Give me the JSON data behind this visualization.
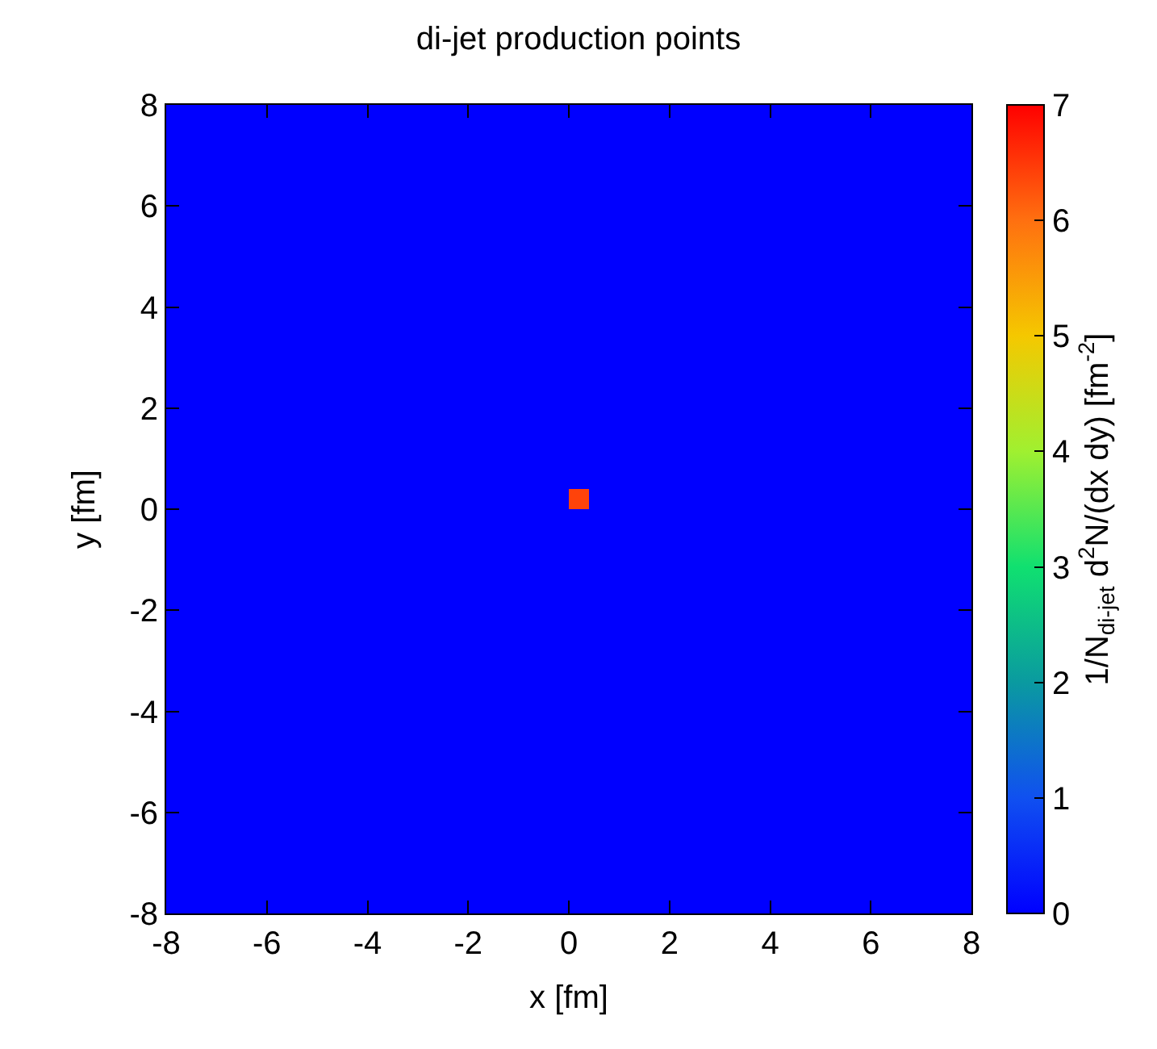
{
  "chart_data": {
    "type": "heatmap",
    "title": "di-jet production points",
    "xlabel": "x [fm]",
    "ylabel": "y [fm]",
    "clabel": "1/N$_{di-jet}$ d$^{2}$N/(dx dy) [fm$^{-2}$]",
    "x": [
      -7.8,
      -7.4,
      -7.0,
      -6.6,
      -6.2,
      -5.8,
      -5.4,
      -5.0,
      -4.6,
      -4.2,
      -3.8,
      -3.4,
      -3.0,
      -2.6,
      -2.2,
      -1.8,
      -1.4,
      -1.0,
      -0.6,
      -0.2,
      0.2,
      0.6,
      1.0,
      1.4,
      1.8,
      2.2,
      2.6,
      3.0,
      3.4,
      3.8,
      4.2,
      4.6,
      5.0,
      5.4,
      5.8,
      6.2,
      6.6,
      7.0,
      7.4,
      7.8
    ],
    "y": [
      7.8,
      7.4,
      7.0,
      6.6,
      6.2,
      5.8,
      5.4,
      5.0,
      4.6,
      4.2,
      3.8,
      3.4,
      3.0,
      2.6,
      2.2,
      1.8,
      1.4,
      1.0,
      0.6,
      0.2,
      -0.2,
      -0.6,
      -1.0,
      -1.4,
      -1.8,
      -2.2,
      -2.6,
      -3.0,
      -3.4,
      -3.8,
      -4.2,
      -4.6,
      -5.0,
      -5.4,
      -5.8,
      -6.2,
      -6.6,
      -7.0,
      -7.4,
      -7.8
    ],
    "cells": [
      [
        0,
        0,
        0,
        0,
        0,
        0,
        0,
        0,
        0,
        0,
        0,
        0,
        0,
        0,
        0,
        0,
        0,
        0,
        0,
        0,
        0,
        0,
        0,
        0,
        0,
        0,
        0,
        0,
        0,
        0,
        0,
        0,
        0,
        0,
        0,
        0,
        0,
        0,
        0,
        0
      ],
      [
        0,
        0,
        0,
        0,
        0,
        0,
        0,
        0,
        0,
        0,
        0,
        0,
        0,
        0,
        0,
        0,
        0,
        0,
        0,
        0,
        0,
        0,
        0,
        0,
        0,
        0,
        0,
        0,
        0,
        0,
        0,
        0,
        0,
        0,
        0,
        0,
        0,
        0,
        0,
        0
      ],
      [
        0,
        0,
        0,
        0,
        0,
        0,
        0,
        0,
        0,
        0,
        0,
        0,
        0,
        0,
        0,
        0,
        0,
        0,
        0,
        0,
        0,
        0,
        0,
        0,
        0,
        0,
        0,
        0,
        0,
        0,
        0,
        0,
        0,
        0,
        0,
        0,
        0,
        0,
        0,
        0
      ],
      [
        0,
        0,
        0,
        0,
        0,
        0,
        0,
        0,
        0,
        0,
        0,
        0,
        0,
        0,
        0,
        0,
        0,
        0,
        0,
        0,
        0,
        0,
        0,
        0,
        0,
        0,
        0,
        0,
        0,
        0,
        0,
        0,
        0,
        0,
        0,
        0,
        0,
        0,
        0,
        0
      ],
      [
        0,
        0,
        0,
        0,
        0,
        0,
        0,
        0,
        0,
        0,
        0,
        0,
        0,
        0,
        0,
        0,
        0,
        0,
        0,
        0,
        0,
        0,
        0,
        0,
        0,
        0,
        0,
        0,
        0,
        0,
        0,
        0,
        0,
        0,
        0,
        0,
        0,
        0,
        0,
        0
      ],
      [
        0,
        0,
        0,
        0,
        0,
        0,
        0,
        0,
        0,
        0,
        0,
        0,
        0,
        0,
        0,
        0,
        0,
        0,
        0,
        0,
        0,
        0,
        0,
        0,
        0,
        0,
        0,
        0,
        0,
        0,
        0,
        0,
        0,
        0,
        0,
        0,
        0,
        0,
        0,
        0
      ],
      [
        0,
        0,
        0,
        0,
        0,
        0,
        0,
        0,
        0,
        0,
        0,
        0,
        0,
        0,
        0,
        0,
        0,
        0,
        0,
        0,
        0,
        0,
        0,
        0,
        0,
        0,
        0,
        0,
        0,
        0,
        0,
        0,
        0,
        0,
        0,
        0,
        0,
        0,
        0,
        0
      ],
      [
        0,
        0,
        0,
        0,
        0,
        0,
        0,
        0,
        0,
        0,
        0,
        0,
        0,
        0,
        0,
        0,
        0,
        0,
        0,
        0,
        0,
        0,
        0,
        0,
        0,
        0,
        0,
        0,
        0,
        0,
        0,
        0,
        0,
        0,
        0,
        0,
        0,
        0,
        0,
        0
      ],
      [
        0,
        0,
        0,
        0,
        0,
        0,
        0,
        0,
        0,
        0,
        0,
        0,
        0,
        0,
        0,
        0,
        0,
        0,
        0,
        0,
        0,
        0,
        0,
        0,
        0,
        0,
        0,
        0,
        0,
        0,
        0,
        0,
        0,
        0,
        0,
        0,
        0,
        0,
        0,
        0
      ],
      [
        0,
        0,
        0,
        0,
        0,
        0,
        0,
        0,
        0,
        0,
        0,
        0,
        0,
        0,
        0,
        0,
        0,
        0,
        0,
        0,
        0,
        0,
        0,
        0,
        0,
        0,
        0,
        0,
        0,
        0,
        0,
        0,
        0,
        0,
        0,
        0,
        0,
        0,
        0,
        0
      ],
      [
        0,
        0,
        0,
        0,
        0,
        0,
        0,
        0,
        0,
        0,
        0,
        0,
        0,
        0,
        0,
        0,
        0,
        0,
        0,
        0,
        0,
        0,
        0,
        0,
        0,
        0,
        0,
        0,
        0,
        0,
        0,
        0,
        0,
        0,
        0,
        0,
        0,
        0,
        0,
        0
      ],
      [
        0,
        0,
        0,
        0,
        0,
        0,
        0,
        0,
        0,
        0,
        0,
        0,
        0,
        0,
        0,
        0,
        0,
        0,
        0,
        0,
        0,
        0,
        0,
        0,
        0,
        0,
        0,
        0,
        0,
        0,
        0,
        0,
        0,
        0,
        0,
        0,
        0,
        0,
        0,
        0
      ],
      [
        0,
        0,
        0,
        0,
        0,
        0,
        0,
        0,
        0,
        0,
        0,
        0,
        0,
        0,
        0,
        0,
        0,
        0,
        0,
        0,
        0,
        0,
        0,
        0,
        0,
        0,
        0,
        0,
        0,
        0,
        0,
        0,
        0,
        0,
        0,
        0,
        0,
        0,
        0,
        0
      ],
      [
        0,
        0,
        0,
        0,
        0,
        0,
        0,
        0,
        0,
        0,
        0,
        0,
        0,
        0,
        0,
        0,
        0,
        0,
        0,
        0,
        0,
        0,
        0,
        0,
        0,
        0,
        0,
        0,
        0,
        0,
        0,
        0,
        0,
        0,
        0,
        0,
        0,
        0,
        0,
        0
      ],
      [
        0,
        0,
        0,
        0,
        0,
        0,
        0,
        0,
        0,
        0,
        0,
        0,
        0,
        0,
        0,
        0,
        0,
        0,
        0,
        0,
        0,
        0,
        0,
        0,
        0,
        0,
        0,
        0,
        0,
        0,
        0,
        0,
        0,
        0,
        0,
        0,
        0,
        0,
        0,
        0
      ],
      [
        0,
        0,
        0,
        0,
        0,
        0,
        0,
        0,
        0,
        0,
        0,
        0,
        0,
        0,
        0,
        0,
        0,
        0,
        0,
        0,
        0,
        0,
        0,
        0,
        0,
        0,
        0,
        0,
        0,
        0,
        0,
        0,
        0,
        0,
        0,
        0,
        0,
        0,
        0,
        0
      ],
      [
        0,
        0,
        0,
        0,
        0,
        0,
        0,
        0,
        0,
        0,
        0,
        0,
        0,
        0,
        0,
        0,
        0,
        0,
        0,
        0,
        0,
        0,
        0,
        0,
        0,
        0,
        0,
        0,
        0,
        0,
        0,
        0,
        0,
        0,
        0,
        0,
        0,
        0,
        0,
        0
      ],
      [
        0,
        0,
        0,
        0,
        0,
        0,
        0,
        0,
        0,
        0,
        0,
        0,
        0,
        0,
        0,
        0,
        0,
        0,
        0,
        0,
        0,
        0,
        0,
        0,
        0,
        0,
        0,
        0,
        0,
        0,
        0,
        0,
        0,
        0,
        0,
        0,
        0,
        0,
        0,
        0
      ],
      [
        0,
        0,
        0,
        0,
        0,
        0,
        0,
        0,
        0,
        0,
        0,
        0,
        0,
        0,
        0,
        0,
        0,
        0,
        0,
        0,
        0,
        0,
        0,
        0,
        0,
        0,
        0,
        0,
        0,
        0,
        0,
        0,
        0,
        0,
        0,
        0,
        0,
        0,
        0,
        0
      ],
      [
        0,
        0,
        0,
        0,
        0,
        0,
        0,
        0,
        0,
        0,
        0,
        0,
        0,
        0,
        0,
        0,
        0,
        0,
        0,
        0,
        6.4,
        0,
        0,
        0,
        0,
        0,
        0,
        0,
        0,
        0,
        0,
        0,
        0,
        0,
        0,
        0,
        0,
        0,
        0,
        0
      ],
      [
        0,
        0,
        0,
        0,
        0,
        0,
        0,
        0,
        0,
        0,
        0,
        0,
        0,
        0,
        0,
        0,
        0,
        0,
        0,
        0,
        0,
        0,
        0,
        0,
        0,
        0,
        0,
        0,
        0,
        0,
        0,
        0,
        0,
        0,
        0,
        0,
        0,
        0,
        0,
        0
      ],
      [
        0,
        0,
        0,
        0,
        0,
        0,
        0,
        0,
        0,
        0,
        0,
        0,
        0,
        0,
        0,
        0,
        0,
        0,
        0,
        0,
        0,
        0,
        0,
        0,
        0,
        0,
        0,
        0,
        0,
        0,
        0,
        0,
        0,
        0,
        0,
        0,
        0,
        0,
        0,
        0
      ],
      [
        0,
        0,
        0,
        0,
        0,
        0,
        0,
        0,
        0,
        0,
        0,
        0,
        0,
        0,
        0,
        0,
        0,
        0,
        0,
        0,
        0,
        0,
        0,
        0,
        0,
        0,
        0,
        0,
        0,
        0,
        0,
        0,
        0,
        0,
        0,
        0,
        0,
        0,
        0,
        0
      ],
      [
        0,
        0,
        0,
        0,
        0,
        0,
        0,
        0,
        0,
        0,
        0,
        0,
        0,
        0,
        0,
        0,
        0,
        0,
        0,
        0,
        0,
        0,
        0,
        0,
        0,
        0,
        0,
        0,
        0,
        0,
        0,
        0,
        0,
        0,
        0,
        0,
        0,
        0,
        0,
        0
      ],
      [
        0,
        0,
        0,
        0,
        0,
        0,
        0,
        0,
        0,
        0,
        0,
        0,
        0,
        0,
        0,
        0,
        0,
        0,
        0,
        0,
        0,
        0,
        0,
        0,
        0,
        0,
        0,
        0,
        0,
        0,
        0,
        0,
        0,
        0,
        0,
        0,
        0,
        0,
        0,
        0
      ],
      [
        0,
        0,
        0,
        0,
        0,
        0,
        0,
        0,
        0,
        0,
        0,
        0,
        0,
        0,
        0,
        0,
        0,
        0,
        0,
        0,
        0,
        0,
        0,
        0,
        0,
        0,
        0,
        0,
        0,
        0,
        0,
        0,
        0,
        0,
        0,
        0,
        0,
        0,
        0,
        0
      ],
      [
        0,
        0,
        0,
        0,
        0,
        0,
        0,
        0,
        0,
        0,
        0,
        0,
        0,
        0,
        0,
        0,
        0,
        0,
        0,
        0,
        0,
        0,
        0,
        0,
        0,
        0,
        0,
        0,
        0,
        0,
        0,
        0,
        0,
        0,
        0,
        0,
        0,
        0,
        0,
        0
      ],
      [
        0,
        0,
        0,
        0,
        0,
        0,
        0,
        0,
        0,
        0,
        0,
        0,
        0,
        0,
        0,
        0,
        0,
        0,
        0,
        0,
        0,
        0,
        0,
        0,
        0,
        0,
        0,
        0,
        0,
        0,
        0,
        0,
        0,
        0,
        0,
        0,
        0,
        0,
        0,
        0
      ],
      [
        0,
        0,
        0,
        0,
        0,
        0,
        0,
        0,
        0,
        0,
        0,
        0,
        0,
        0,
        0,
        0,
        0,
        0,
        0,
        0,
        0,
        0,
        0,
        0,
        0,
        0,
        0,
        0,
        0,
        0,
        0,
        0,
        0,
        0,
        0,
        0,
        0,
        0,
        0,
        0
      ],
      [
        0,
        0,
        0,
        0,
        0,
        0,
        0,
        0,
        0,
        0,
        0,
        0,
        0,
        0,
        0,
        0,
        0,
        0,
        0,
        0,
        0,
        0,
        0,
        0,
        0,
        0,
        0,
        0,
        0,
        0,
        0,
        0,
        0,
        0,
        0,
        0,
        0,
        0,
        0,
        0
      ],
      [
        0,
        0,
        0,
        0,
        0,
        0,
        0,
        0,
        0,
        0,
        0,
        0,
        0,
        0,
        0,
        0,
        0,
        0,
        0,
        0,
        0,
        0,
        0,
        0,
        0,
        0,
        0,
        0,
        0,
        0,
        0,
        0,
        0,
        0,
        0,
        0,
        0,
        0,
        0,
        0
      ],
      [
        0,
        0,
        0,
        0,
        0,
        0,
        0,
        0,
        0,
        0,
        0,
        0,
        0,
        0,
        0,
        0,
        0,
        0,
        0,
        0,
        0,
        0,
        0,
        0,
        0,
        0,
        0,
        0,
        0,
        0,
        0,
        0,
        0,
        0,
        0,
        0,
        0,
        0,
        0,
        0
      ],
      [
        0,
        0,
        0,
        0,
        0,
        0,
        0,
        0,
        0,
        0,
        0,
        0,
        0,
        0,
        0,
        0,
        0,
        0,
        0,
        0,
        0,
        0,
        0,
        0,
        0,
        0,
        0,
        0,
        0,
        0,
        0,
        0,
        0,
        0,
        0,
        0,
        0,
        0,
        0,
        0
      ],
      [
        0,
        0,
        0,
        0,
        0,
        0,
        0,
        0,
        0,
        0,
        0,
        0,
        0,
        0,
        0,
        0,
        0,
        0,
        0,
        0,
        0,
        0,
        0,
        0,
        0,
        0,
        0,
        0,
        0,
        0,
        0,
        0,
        0,
        0,
        0,
        0,
        0,
        0,
        0,
        0
      ],
      [
        0,
        0,
        0,
        0,
        0,
        0,
        0,
        0,
        0,
        0,
        0,
        0,
        0,
        0,
        0,
        0,
        0,
        0,
        0,
        0,
        0,
        0,
        0,
        0,
        0,
        0,
        0,
        0,
        0,
        0,
        0,
        0,
        0,
        0,
        0,
        0,
        0,
        0,
        0,
        0
      ],
      [
        0,
        0,
        0,
        0,
        0,
        0,
        0,
        0,
        0,
        0,
        0,
        0,
        0,
        0,
        0,
        0,
        0,
        0,
        0,
        0,
        0,
        0,
        0,
        0,
        0,
        0,
        0,
        0,
        0,
        0,
        0,
        0,
        0,
        0,
        0,
        0,
        0,
        0,
        0,
        0
      ],
      [
        0,
        0,
        0,
        0,
        0,
        0,
        0,
        0,
        0,
        0,
        0,
        0,
        0,
        0,
        0,
        0,
        0,
        0,
        0,
        0,
        0,
        0,
        0,
        0,
        0,
        0,
        0,
        0,
        0,
        0,
        0,
        0,
        0,
        0,
        0,
        0,
        0,
        0,
        0,
        0
      ],
      [
        0,
        0,
        0,
        0,
        0,
        0,
        0,
        0,
        0,
        0,
        0,
        0,
        0,
        0,
        0,
        0,
        0,
        0,
        0,
        0,
        0,
        0,
        0,
        0,
        0,
        0,
        0,
        0,
        0,
        0,
        0,
        0,
        0,
        0,
        0,
        0,
        0,
        0,
        0,
        0
      ],
      [
        0,
        0,
        0,
        0,
        0,
        0,
        0,
        0,
        0,
        0,
        0,
        0,
        0,
        0,
        0,
        0,
        0,
        0,
        0,
        0,
        0,
        0,
        0,
        0,
        0,
        0,
        0,
        0,
        0,
        0,
        0,
        0,
        0,
        0,
        0,
        0,
        0,
        0,
        0,
        0
      ],
      [
        0,
        0,
        0,
        0,
        0,
        0,
        0,
        0,
        0,
        0,
        0,
        0,
        0,
        0,
        0,
        0,
        0,
        0,
        0,
        0,
        0,
        0,
        0,
        0,
        0,
        0,
        0,
        0,
        0,
        0,
        0,
        0,
        0,
        0,
        0,
        0,
        0,
        0,
        0,
        0
      ]
    ],
    "colors": [
      "#0000ff",
      "#1050f0",
      "#0a9aa0",
      "#10e070",
      "#a0f030",
      "#f5c800",
      "#ff7010",
      "#ff0000"
    ],
    "clim": [
      0,
      7
    ],
    "cticks": [
      0,
      1,
      2,
      3,
      4,
      5,
      6,
      7
    ],
    "xlim": [
      -8,
      8
    ],
    "xticks": [
      -8,
      -6,
      -4,
      -2,
      0,
      2,
      4,
      6,
      8
    ],
    "ylim": [
      -8,
      8
    ],
    "yticks": [
      -8,
      -6,
      -4,
      -2,
      0,
      2,
      4,
      6,
      8
    ]
  }
}
